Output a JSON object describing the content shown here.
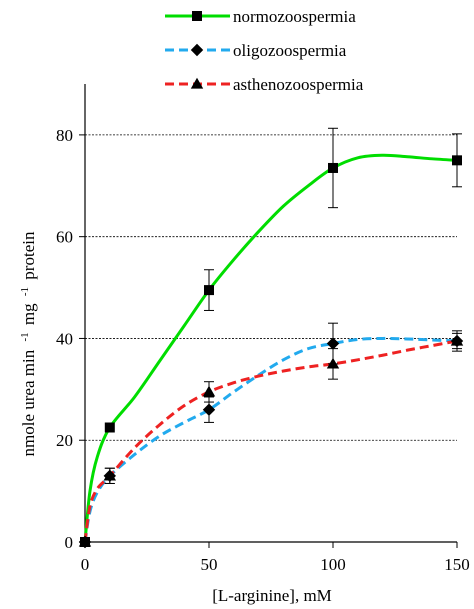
{
  "chart_data": {
    "type": "line",
    "title": "",
    "xlabel": "[L-arginine], mM",
    "ylabel": "nmole urea min",
    "ylabel_superscript_1": "-1",
    "ylabel_mid": "mg",
    "ylabel_superscript_2": "-1",
    "ylabel_end": "protein",
    "xlim": [
      0,
      150
    ],
    "ylim": [
      0,
      90
    ],
    "x_ticks": [
      0,
      50,
      100,
      150
    ],
    "y_ticks": [
      0,
      20,
      40,
      60,
      80
    ],
    "grid": "horizontal dashed",
    "legend_position": "top",
    "x": [
      0,
      10,
      50,
      100,
      150
    ],
    "series": [
      {
        "name": "normozoospermia",
        "values": [
          0,
          22.5,
          49.5,
          73.5,
          75
        ],
        "errors": [
          0,
          0,
          4,
          7.8,
          5.2
        ],
        "color": "#00dd00",
        "dash": "solid",
        "marker": "square",
        "curve": [
          [
            0,
            0
          ],
          [
            2,
            10
          ],
          [
            5,
            16.8
          ],
          [
            10,
            22.5
          ],
          [
            20,
            28.5
          ],
          [
            30,
            35.5
          ],
          [
            40,
            42.5
          ],
          [
            50,
            49.5
          ],
          [
            60,
            55.5
          ],
          [
            70,
            61
          ],
          [
            80,
            66
          ],
          [
            90,
            70
          ],
          [
            100,
            73.5
          ],
          [
            110,
            75.5
          ],
          [
            120,
            76
          ],
          [
            130,
            75.7
          ],
          [
            140,
            75.3
          ],
          [
            150,
            75
          ]
        ]
      },
      {
        "name": "oligozoospermia",
        "values": [
          0,
          13,
          26,
          39,
          39.5
        ],
        "errors": [
          0,
          1.5,
          2.5,
          4,
          2
        ],
        "color": "#22aaee",
        "dash": "dashed",
        "marker": "diamond",
        "curve": [
          [
            0,
            0
          ],
          [
            2,
            6
          ],
          [
            5,
            9.8
          ],
          [
            10,
            13
          ],
          [
            20,
            17.2
          ],
          [
            30,
            20.8
          ],
          [
            40,
            23.5
          ],
          [
            50,
            26
          ],
          [
            60,
            29.5
          ],
          [
            70,
            32.8
          ],
          [
            80,
            35.8
          ],
          [
            90,
            38
          ],
          [
            100,
            39
          ],
          [
            110,
            39.8
          ],
          [
            120,
            40
          ],
          [
            130,
            39.9
          ],
          [
            140,
            39.7
          ],
          [
            150,
            39.5
          ]
        ]
      },
      {
        "name": "asthenozoospermia",
        "values": [
          0,
          13,
          29.5,
          35,
          39.5
        ],
        "errors": [
          0,
          1.5,
          2,
          3,
          1.5
        ],
        "color": "#ee2222",
        "dash": "dashed",
        "marker": "triangle",
        "curve": [
          [
            0,
            0
          ],
          [
            2,
            7
          ],
          [
            5,
            10.5
          ],
          [
            10,
            13
          ],
          [
            20,
            18.5
          ],
          [
            30,
            23
          ],
          [
            40,
            26.8
          ],
          [
            50,
            29.5
          ],
          [
            60,
            31.3
          ],
          [
            70,
            32.6
          ],
          [
            80,
            33.6
          ],
          [
            90,
            34.4
          ],
          [
            100,
            35
          ],
          [
            110,
            35.8
          ],
          [
            120,
            36.7
          ],
          [
            130,
            37.7
          ],
          [
            140,
            38.6
          ],
          [
            150,
            39.5
          ]
        ]
      }
    ]
  }
}
